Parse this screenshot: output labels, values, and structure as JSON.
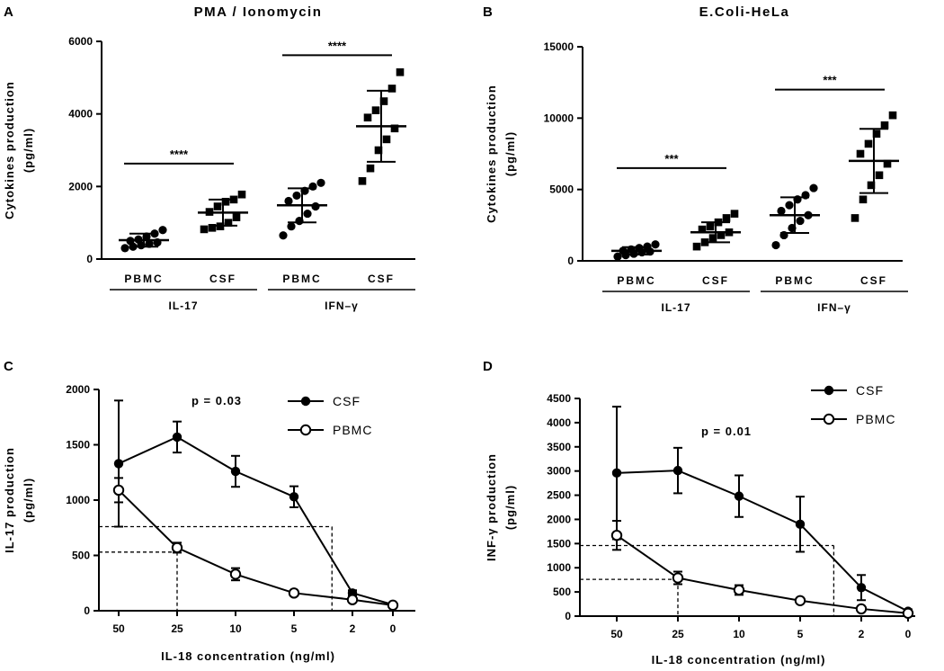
{
  "chart_data": [
    {
      "panel": "A",
      "type": "scatter",
      "title": "PMA / Ionomycin",
      "ylabel": "Cytokines production",
      "ylabel_unit": "(pg/ml)",
      "ylim": [
        0,
        6000
      ],
      "yticks": [
        "0",
        "2000",
        "4000",
        "6000"
      ],
      "ytick_values": [
        0,
        2000,
        4000,
        6000
      ],
      "categories": [
        "PBMC",
        "CSF",
        "PBMC",
        "CSF"
      ],
      "groups": [
        "IL-17",
        "IFN–γ"
      ],
      "series": [
        {
          "name": "IL-17 PBMC",
          "marker": "circle",
          "mean": 520,
          "sd": 180,
          "values": [
            300,
            340,
            380,
            420,
            460,
            500,
            540,
            620,
            700,
            800
          ]
        },
        {
          "name": "IL-17 CSF",
          "marker": "square",
          "mean": 1280,
          "sd": 360,
          "values": [
            820,
            860,
            900,
            1000,
            1150,
            1300,
            1450,
            1580,
            1640,
            1780
          ]
        },
        {
          "name": "IFN-γ PBMC",
          "marker": "circle",
          "mean": 1480,
          "sd": 470,
          "values": [
            650,
            900,
            1050,
            1250,
            1450,
            1600,
            1750,
            1880,
            2000,
            2100
          ]
        },
        {
          "name": "IFN-γ CSF",
          "marker": "square",
          "mean": 3660,
          "sd": 980,
          "values": [
            2150,
            2500,
            3000,
            3300,
            3600,
            3900,
            4100,
            4350,
            4700,
            5150
          ]
        }
      ],
      "significance": [
        {
          "label": "****",
          "pair": [
            0,
            1
          ],
          "y": 2630
        },
        {
          "label": "****",
          "pair": [
            2,
            3
          ],
          "y": 5620
        }
      ]
    },
    {
      "panel": "B",
      "type": "scatter",
      "title": "E.Coli-HeLa",
      "ylabel": "Cytokines production",
      "ylabel_unit": "(pg/ml)",
      "ylim": [
        0,
        15000
      ],
      "yticks": [
        "0",
        "5000",
        "10000",
        "15000"
      ],
      "ytick_values": [
        0,
        5000,
        10000,
        15000
      ],
      "categories": [
        "PBMC",
        "CSF",
        "PBMC",
        "CSF"
      ],
      "groups": [
        "IL-17",
        "IFN–γ"
      ],
      "series": [
        {
          "name": "IL-17 PBMC",
          "marker": "circle",
          "mean": 700,
          "sd": 260,
          "values": [
            300,
            400,
            500,
            600,
            650,
            700,
            800,
            900,
            1000,
            1150
          ]
        },
        {
          "name": "IL-17 CSF",
          "marker": "square",
          "mean": 2000,
          "sd": 700,
          "values": [
            1000,
            1300,
            1600,
            1800,
            2000,
            2200,
            2400,
            2700,
            3000,
            3300
          ]
        },
        {
          "name": "IFN-γ PBMC",
          "marker": "circle",
          "mean": 3200,
          "sd": 1250,
          "values": [
            1100,
            1800,
            2300,
            2800,
            3200,
            3500,
            3900,
            4300,
            4600,
            5100
          ]
        },
        {
          "name": "IFN-γ CSF",
          "marker": "square",
          "mean": 7000,
          "sd": 2250,
          "values": [
            3000,
            4300,
            5300,
            6000,
            6800,
            7500,
            8200,
            8900,
            9500,
            10200
          ]
        }
      ],
      "significance": [
        {
          "label": "***",
          "pair": [
            0,
            1
          ],
          "y": 6500
        },
        {
          "label": "***",
          "pair": [
            2,
            3
          ],
          "y": 12000
        }
      ]
    },
    {
      "panel": "C",
      "type": "line",
      "xlabel": "IL-18 concentration (ng/ml)",
      "ylabel": "IL-17 production",
      "ylabel_unit": "(pg/ml)",
      "x": [
        "50",
        "25",
        "10",
        "5",
        "2",
        "0"
      ],
      "ylim": [
        0,
        2000
      ],
      "yticks": [
        "0",
        "500",
        "1000",
        "1500",
        "2000"
      ],
      "ytick_values": [
        0,
        500,
        1000,
        1500,
        2000
      ],
      "annotation": "p = 0.03",
      "series": [
        {
          "name": "CSF",
          "marker": "filled-circle",
          "values": [
            1330,
            1570,
            1260,
            1030,
            160,
            55
          ],
          "errors": [
            570,
            140,
            140,
            95,
            25,
            15
          ]
        },
        {
          "name": "PBMC",
          "marker": "open-circle",
          "values": [
            1090,
            570,
            330,
            160,
            100,
            50
          ],
          "errors": [
            110,
            45,
            55,
            15,
            10,
            10
          ]
        }
      ],
      "reference_lines": [
        {
          "y": 760,
          "x_index": 3.65
        },
        {
          "y": 530,
          "x_index": 1.0
        }
      ]
    },
    {
      "panel": "D",
      "type": "line",
      "xlabel": "IL-18 concentration (ng/ml)",
      "ylabel": "INF-γ production",
      "ylabel_unit": "(pg/ml)",
      "x": [
        "50",
        "25",
        "10",
        "5",
        "2",
        "0"
      ],
      "ylim": [
        0,
        4500
      ],
      "yticks": [
        "0",
        "500",
        "1000",
        "1500",
        "2000",
        "2500",
        "3000",
        "3500",
        "4000",
        "4500"
      ],
      "ytick_values": [
        0,
        500,
        1000,
        1500,
        2000,
        2500,
        3000,
        3500,
        4000,
        4500
      ],
      "annotation": "p = 0.01",
      "series": [
        {
          "name": "CSF",
          "marker": "filled-circle",
          "values": [
            2960,
            3010,
            2480,
            1900,
            590,
            100
          ],
          "errors": [
            1370,
            470,
            430,
            570,
            260,
            40
          ]
        },
        {
          "name": "PBMC",
          "marker": "open-circle",
          "values": [
            1670,
            790,
            540,
            320,
            150,
            60
          ],
          "errors": [
            300,
            130,
            100,
            50,
            30,
            15
          ]
        }
      ],
      "reference_lines": [
        {
          "y": 1460,
          "x_index": 3.55
        },
        {
          "y": 760,
          "x_index": 1.0
        }
      ]
    }
  ]
}
